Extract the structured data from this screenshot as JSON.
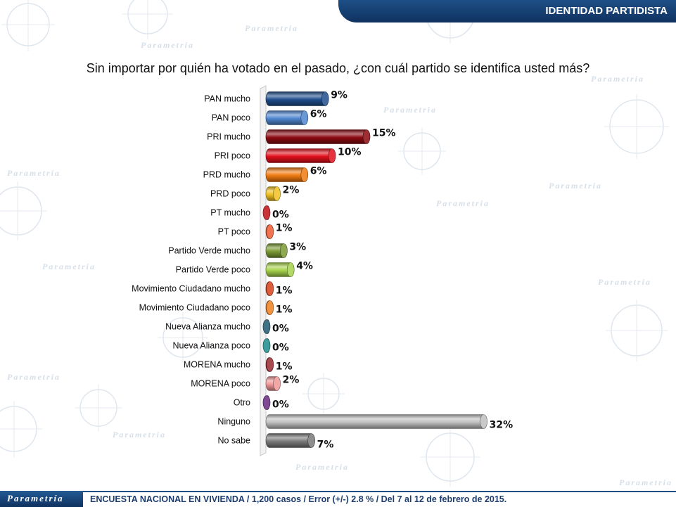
{
  "header": {
    "title": "IDENTIDAD PARTIDISTA"
  },
  "question": "Sin importar por quién ha votado en el pasado, ¿con cuál partido se identifica usted más?",
  "watermark": {
    "text": "Parametria"
  },
  "footer": {
    "logo": "Parametría",
    "note": "ENCUESTA NACIONAL EN VIVIENDA / 1,200 casos / Error (+/-) 2.8 % / Del 7 al 12 de febrero de 2015."
  },
  "chart_data": {
    "type": "bar",
    "orientation": "horizontal",
    "title": "",
    "xlabel": "",
    "ylabel": "",
    "xlim": [
      0,
      32
    ],
    "grid": false,
    "legend": "none",
    "categories": [
      "PAN mucho",
      "PAN poco",
      "PRI mucho",
      "PRI poco",
      "PRD mucho",
      "PRD poco",
      "PT mucho",
      "PT poco",
      "Partido Verde mucho",
      "Partido Verde poco",
      "Movimiento Ciudadano mucho",
      "Movimiento Ciudadano poco",
      "Nueva Alianza mucho",
      "Nueva Alianza poco",
      "MORENA mucho",
      "MORENA poco",
      "Otro",
      "Ninguno",
      "No sabe"
    ],
    "values": [
      9,
      6,
      15,
      10,
      6,
      2,
      0,
      1,
      3,
      4,
      1,
      1,
      0,
      0,
      1,
      2,
      0,
      32,
      7
    ],
    "labels": [
      "9%",
      "6%",
      "15%",
      "10%",
      "6%",
      "2%",
      "0%",
      "1%",
      "3%",
      "4%",
      "1%",
      "1%",
      "0%",
      "0%",
      "1%",
      "2%",
      "0%",
      "32%",
      "7%"
    ],
    "colors": [
      "#1f4e8c",
      "#4f86cf",
      "#8b0a10",
      "#e0101c",
      "#f07a10",
      "#f0c020",
      "#c01018",
      "#f05a30",
      "#7a9a32",
      "#a6d24a",
      "#d8401a",
      "#f08020",
      "#1f5870",
      "#1d8a8a",
      "#9a2a30",
      "#f09898",
      "#6a2a80",
      "#c0c0c0",
      "#7a7a7a"
    ]
  }
}
